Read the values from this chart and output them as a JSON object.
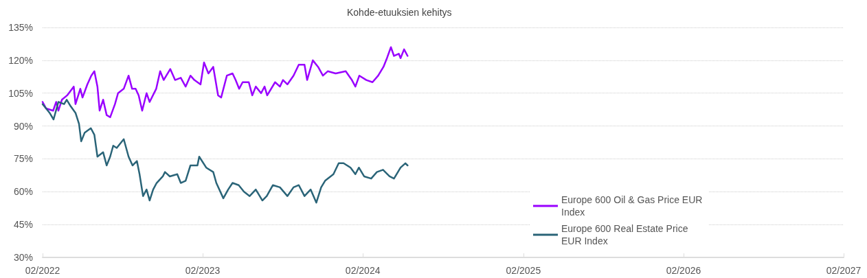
{
  "chart_data": {
    "type": "line",
    "title": "Kohde-etuuksien kehitys",
    "xlim": [
      "2022-02-01",
      "2027-02-01"
    ],
    "xticks": [
      {
        "value": "2022-02-01",
        "label": "02/2022"
      },
      {
        "value": "2023-02-01",
        "label": "02/2023"
      },
      {
        "value": "2024-02-01",
        "label": "02/2024"
      },
      {
        "value": "2025-02-01",
        "label": "02/2025"
      },
      {
        "value": "2026-02-01",
        "label": "02/2026"
      },
      {
        "value": "2027-02-01",
        "label": "02/2027"
      }
    ],
    "ylim": [
      30,
      135
    ],
    "yticks": [
      {
        "value": 30,
        "label": "30%"
      },
      {
        "value": 45,
        "label": "45%"
      },
      {
        "value": 60,
        "label": "60%"
      },
      {
        "value": 75,
        "label": "75%"
      },
      {
        "value": 90,
        "label": "90%"
      },
      {
        "value": 105,
        "label": "105%"
      },
      {
        "value": 120,
        "label": "120%"
      },
      {
        "value": 135,
        "label": "135%"
      }
    ],
    "grid": "y",
    "legend": "bottom right",
    "marker": "none",
    "line_style": "solid",
    "series": [
      {
        "name": "Europe 600 Oil & Gas Price EUR Index",
        "color": "#9900ff",
        "x": [
          "2022-02-01",
          "2022-02-09",
          "2022-02-25",
          "2022-03-04",
          "2022-03-09",
          "2022-03-17",
          "2022-03-29",
          "2022-04-13",
          "2022-04-17",
          "2022-04-28",
          "2022-05-03",
          "2022-05-14",
          "2022-05-23",
          "2022-05-30",
          "2022-06-06",
          "2022-06-11",
          "2022-06-19",
          "2022-06-27",
          "2022-07-05",
          "2022-07-16",
          "2022-07-23",
          "2022-08-05",
          "2022-08-16",
          "2022-08-24",
          "2022-09-01",
          "2022-09-08",
          "2022-09-16",
          "2022-09-26",
          "2022-10-03",
          "2022-10-18",
          "2022-10-27",
          "2022-11-04",
          "2022-11-19",
          "2022-11-30",
          "2022-12-13",
          "2022-12-24",
          "2023-01-04",
          "2023-01-13",
          "2023-01-27",
          "2023-02-04",
          "2023-02-14",
          "2023-02-25",
          "2023-03-08",
          "2023-03-15",
          "2023-03-28",
          "2023-04-10",
          "2023-04-17",
          "2023-04-25",
          "2023-05-03",
          "2023-05-17",
          "2023-05-25",
          "2023-06-02",
          "2023-06-14",
          "2023-06-22",
          "2023-06-28",
          "2023-07-16",
          "2023-07-27",
          "2023-08-03",
          "2023-08-13",
          "2023-08-27",
          "2023-09-08",
          "2023-09-21",
          "2023-09-27",
          "2023-10-10",
          "2023-10-22",
          "2023-11-02",
          "2023-11-13",
          "2023-12-01",
          "2023-12-24",
          "2024-01-07",
          "2024-01-15",
          "2024-01-24",
          "2024-02-09",
          "2024-02-23",
          "2024-03-07",
          "2024-03-19",
          "2024-03-27",
          "2024-04-05",
          "2024-04-12",
          "2024-04-23",
          "2024-04-27",
          "2024-05-05",
          "2024-05-13"
        ],
        "values": [
          101,
          98,
          97,
          101,
          97,
          102,
          104,
          108,
          100,
          107,
          103,
          109,
          113,
          115,
          108,
          97,
          102,
          95,
          94,
          100,
          105,
          107,
          113,
          107,
          107,
          104,
          97,
          105,
          101,
          107,
          115,
          111,
          116,
          111,
          112,
          108,
          113,
          111,
          109,
          119,
          114,
          117,
          104,
          103,
          113,
          114,
          111,
          107,
          110,
          110,
          104,
          108,
          105,
          108,
          104,
          110,
          108,
          111,
          109,
          113,
          118,
          118,
          111,
          120,
          117,
          113,
          115,
          114,
          115,
          111,
          108,
          113,
          111,
          110,
          113,
          117,
          121,
          126,
          122,
          123,
          121,
          125,
          122
        ]
      },
      {
        "name": "Europe 600 Real Estate Price EUR Index",
        "color": "#2a6478",
        "x": [
          "2022-02-01",
          "2022-02-09",
          "2022-02-17",
          "2022-02-26",
          "2022-03-09",
          "2022-03-22",
          "2022-03-28",
          "2022-04-06",
          "2022-04-17",
          "2022-04-25",
          "2022-04-30",
          "2022-05-08",
          "2022-05-22",
          "2022-05-30",
          "2022-06-06",
          "2022-06-19",
          "2022-06-27",
          "2022-07-05",
          "2022-07-12",
          "2022-07-20",
          "2022-08-05",
          "2022-08-16",
          "2022-08-25",
          "2022-09-04",
          "2022-09-10",
          "2022-09-18",
          "2022-09-26",
          "2022-10-03",
          "2022-10-11",
          "2022-10-19",
          "2022-11-02",
          "2022-11-07",
          "2022-11-18",
          "2022-12-05",
          "2022-12-13",
          "2022-12-24",
          "2023-01-04",
          "2023-01-20",
          "2023-01-24",
          "2023-02-09",
          "2023-02-25",
          "2023-03-04",
          "2023-03-20",
          "2023-03-31",
          "2023-04-10",
          "2023-04-24",
          "2023-05-06",
          "2023-05-19",
          "2023-06-02",
          "2023-06-17",
          "2023-06-27",
          "2023-07-11",
          "2023-07-27",
          "2023-08-13",
          "2023-08-27",
          "2023-09-08",
          "2023-09-21",
          "2023-10-05",
          "2023-10-18",
          "2023-10-29",
          "2023-11-07",
          "2023-11-26",
          "2023-12-08",
          "2023-12-19",
          "2024-01-04",
          "2024-01-15",
          "2024-01-23",
          "2024-02-04",
          "2024-02-20",
          "2024-03-04",
          "2024-03-18",
          "2024-04-02",
          "2024-04-12",
          "2024-04-27",
          "2024-05-08",
          "2024-05-13"
        ],
        "values": [
          100,
          98,
          96,
          93,
          101,
          100,
          102,
          99,
          96,
          91,
          83,
          87,
          89,
          86,
          76,
          78,
          72,
          76,
          81,
          80,
          84,
          76,
          72,
          74,
          68,
          58,
          61,
          56,
          61,
          64,
          67,
          69,
          67,
          68,
          64,
          65,
          72,
          72,
          76,
          71,
          69,
          64,
          57,
          61,
          64,
          63,
          60,
          58,
          61,
          56,
          58,
          63,
          62,
          58,
          62,
          63,
          58,
          61,
          55,
          62,
          65,
          68,
          73,
          73,
          71,
          68,
          71,
          67,
          66,
          69,
          70,
          67,
          66,
          71,
          73,
          72
        ]
      }
    ]
  }
}
